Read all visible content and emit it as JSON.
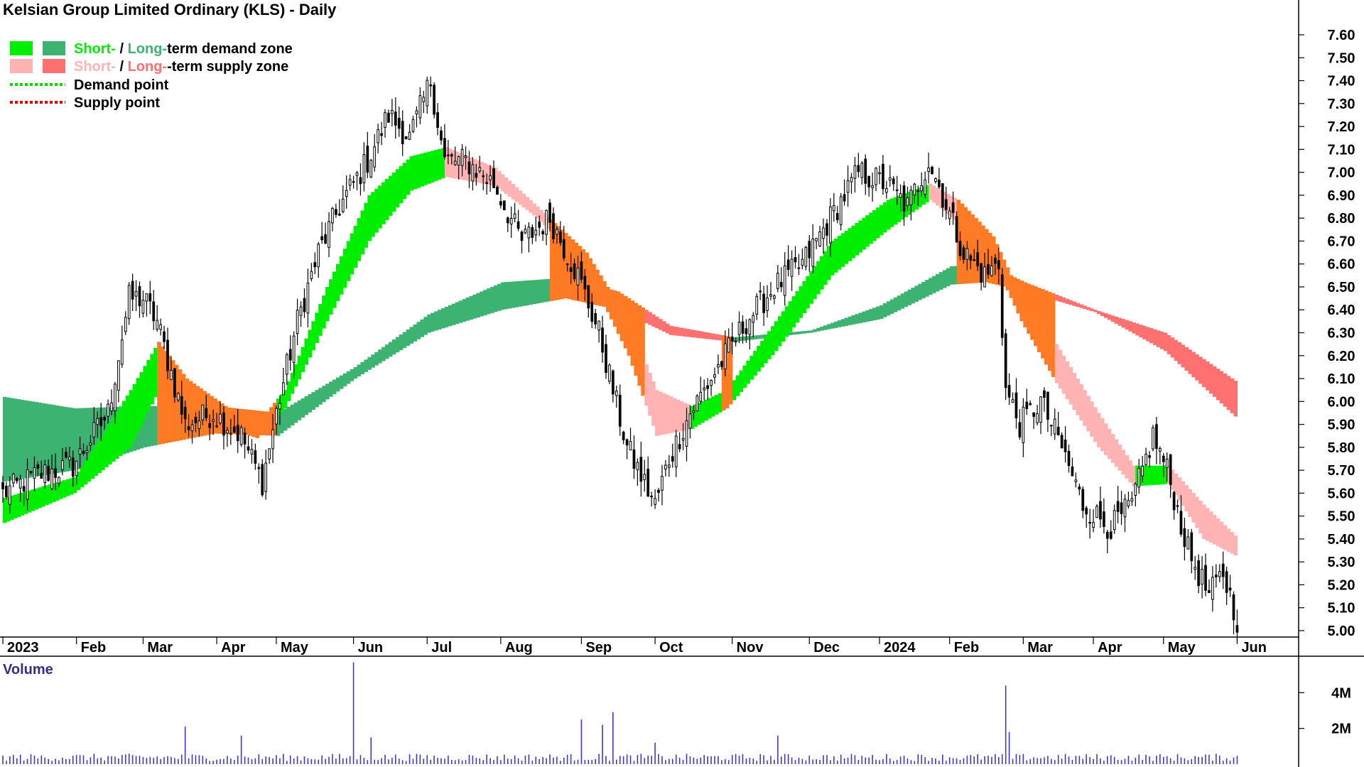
{
  "colors": {
    "short_demand": "#00ee00",
    "long_demand": "#3cb371",
    "short_supply": "#ffb3b3",
    "long_supply": "#ff7070",
    "overlap_zone": "#ff7a22",
    "demand_point": "#00dd00",
    "supply_point": "#e60000",
    "candle": "#000000",
    "volume_bar": "#3a3acc",
    "volume_label": "#3b2a86"
  },
  "chart_data": {
    "type": "candlestick",
    "title": "Kelsian Group Limited Ordinary (KLS) - Daily",
    "legend": [
      {
        "key": "zones_demand",
        "parts": [
          {
            "text": "Short-",
            "color": "short_demand"
          },
          {
            "text": " / ",
            "color": "text"
          },
          {
            "text": "Long-",
            "color": "long_demand"
          },
          {
            "text": "term demand zone",
            "color": "text"
          }
        ]
      },
      {
        "key": "zones_supply",
        "parts": [
          {
            "text": "Short-",
            "color": "short_supply"
          },
          {
            "text": " / ",
            "color": "text"
          },
          {
            "text": "Long-",
            "color": "long_supply"
          },
          {
            "text": "-term supply zone",
            "color": "text"
          }
        ]
      },
      {
        "key": "demand_point",
        "text": "Demand point"
      },
      {
        "key": "supply_point",
        "text": "Supply point"
      }
    ],
    "legend_placement": "top-left",
    "y_axis": {
      "position": "right",
      "ylim": [
        4.98,
        7.64
      ],
      "ticks": [
        5.0,
        5.1,
        5.2,
        5.3,
        5.4,
        5.5,
        5.6,
        5.7,
        5.8,
        5.9,
        6.0,
        6.1,
        6.2,
        6.3,
        6.4,
        6.5,
        6.6,
        6.7,
        6.8,
        6.9,
        7.0,
        7.1,
        7.2,
        7.3,
        7.4,
        7.5,
        7.6
      ],
      "tick_labels": [
        "5.00",
        "5.10",
        "5.20",
        "5.30",
        "5.40",
        "5.50",
        "5.60",
        "5.70",
        "5.80",
        "5.90",
        "6.00",
        "6.10",
        "6.20",
        "6.30",
        "6.40",
        "6.50",
        "6.60",
        "6.70",
        "6.80",
        "6.90",
        "7.00",
        "7.10",
        "7.20",
        "7.30",
        "7.40",
        "7.50",
        "7.60"
      ]
    },
    "x_axis": {
      "months": [
        {
          "label": "2023",
          "index": 0
        },
        {
          "label": "Feb",
          "index": 21
        },
        {
          "label": "Mar",
          "index": 40
        },
        {
          "label": "Apr",
          "index": 61
        },
        {
          "label": "May",
          "index": 78
        },
        {
          "label": "Jun",
          "index": 100
        },
        {
          "label": "Jul",
          "index": 121
        },
        {
          "label": "Aug",
          "index": 142
        },
        {
          "label": "Sep",
          "index": 165
        },
        {
          "label": "Oct",
          "index": 186
        },
        {
          "label": "Nov",
          "index": 208
        },
        {
          "label": "Dec",
          "index": 230
        },
        {
          "label": "2024",
          "index": 250
        },
        {
          "label": "Feb",
          "index": 270
        },
        {
          "label": "Mar",
          "index": 291
        },
        {
          "label": "Apr",
          "index": 311
        },
        {
          "label": "May",
          "index": 331
        },
        {
          "label": "Jun",
          "index": 352
        }
      ],
      "total_bars": 360
    },
    "price_keypoints": [
      {
        "i": 0,
        "c": 5.6
      },
      {
        "i": 10,
        "c": 5.68
      },
      {
        "i": 20,
        "c": 5.72
      },
      {
        "i": 30,
        "c": 5.95
      },
      {
        "i": 36,
        "c": 6.45
      },
      {
        "i": 40,
        "c": 6.45
      },
      {
        "i": 44,
        "c": 6.35
      },
      {
        "i": 52,
        "c": 5.9
      },
      {
        "i": 60,
        "c": 5.95
      },
      {
        "i": 68,
        "c": 5.85
      },
      {
        "i": 74,
        "c": 5.65
      },
      {
        "i": 78,
        "c": 5.95
      },
      {
        "i": 84,
        "c": 6.35
      },
      {
        "i": 90,
        "c": 6.65
      },
      {
        "i": 96,
        "c": 6.85
      },
      {
        "i": 104,
        "c": 7.05
      },
      {
        "i": 110,
        "c": 7.25
      },
      {
        "i": 116,
        "c": 7.15
      },
      {
        "i": 122,
        "c": 7.4
      },
      {
        "i": 126,
        "c": 7.05
      },
      {
        "i": 132,
        "c": 7.05
      },
      {
        "i": 140,
        "c": 6.95
      },
      {
        "i": 148,
        "c": 6.7
      },
      {
        "i": 156,
        "c": 6.8
      },
      {
        "i": 164,
        "c": 6.55
      },
      {
        "i": 170,
        "c": 6.3
      },
      {
        "i": 178,
        "c": 5.8
      },
      {
        "i": 186,
        "c": 5.55
      },
      {
        "i": 190,
        "c": 5.75
      },
      {
        "i": 196,
        "c": 5.95
      },
      {
        "i": 204,
        "c": 6.15
      },
      {
        "i": 212,
        "c": 6.35
      },
      {
        "i": 220,
        "c": 6.5
      },
      {
        "i": 228,
        "c": 6.6
      },
      {
        "i": 236,
        "c": 6.8
      },
      {
        "i": 244,
        "c": 7.0
      },
      {
        "i": 252,
        "c": 6.95
      },
      {
        "i": 258,
        "c": 6.85
      },
      {
        "i": 264,
        "c": 7.05
      },
      {
        "i": 268,
        "c": 6.9
      },
      {
        "i": 274,
        "c": 6.65
      },
      {
        "i": 280,
        "c": 6.55
      },
      {
        "i": 284,
        "c": 6.6
      },
      {
        "i": 286,
        "c": 6.05
      },
      {
        "i": 290,
        "c": 5.9
      },
      {
        "i": 296,
        "c": 6.0
      },
      {
        "i": 302,
        "c": 5.8
      },
      {
        "i": 308,
        "c": 5.55
      },
      {
        "i": 316,
        "c": 5.45
      },
      {
        "i": 322,
        "c": 5.55
      },
      {
        "i": 328,
        "c": 5.85
      },
      {
        "i": 332,
        "c": 5.7
      },
      {
        "i": 338,
        "c": 5.35
      },
      {
        "i": 344,
        "c": 5.15
      },
      {
        "i": 348,
        "c": 5.25
      },
      {
        "i": 352,
        "c": 5.05
      }
    ],
    "long_zone": [
      {
        "i": 0,
        "top": 6.02,
        "bot": 5.65
      },
      {
        "i": 20,
        "top": 5.97,
        "bot": 5.7
      },
      {
        "i": 40,
        "top": 5.98,
        "bot": 5.8
      },
      {
        "i": 60,
        "top": 5.98,
        "bot": 5.86
      },
      {
        "i": 78,
        "top": 5.95,
        "bot": 5.85
      },
      {
        "i": 100,
        "top": 6.15,
        "bot": 6.1
      },
      {
        "i": 121,
        "top": 6.38,
        "bot": 6.3
      },
      {
        "i": 142,
        "top": 6.52,
        "bot": 6.4
      },
      {
        "i": 160,
        "top": 6.54,
        "bot": 6.45
      },
      {
        "i": 175,
        "top": 6.48,
        "bot": 6.4
      },
      {
        "i": 190,
        "top": 6.33,
        "bot": 6.29
      },
      {
        "i": 208,
        "top": 6.28,
        "bot": 6.26
      },
      {
        "i": 230,
        "top": 6.31,
        "bot": 6.3
      },
      {
        "i": 250,
        "top": 6.42,
        "bot": 6.36
      },
      {
        "i": 270,
        "top": 6.59,
        "bot": 6.51
      },
      {
        "i": 280,
        "top": 6.6,
        "bot": 6.52
      },
      {
        "i": 291,
        "top": 6.52,
        "bot": 6.48
      },
      {
        "i": 311,
        "top": 6.4,
        "bot": 6.39
      },
      {
        "i": 331,
        "top": 6.3,
        "bot": 6.22
      },
      {
        "i": 352,
        "top": 6.08,
        "bot": 5.92
      }
    ],
    "short_zone": [
      {
        "i": 0,
        "top": 5.58,
        "bot": 5.47
      },
      {
        "i": 20,
        "top": 5.67,
        "bot": 5.6
      },
      {
        "i": 36,
        "top": 6.05,
        "bot": 5.8
      },
      {
        "i": 44,
        "top": 6.26,
        "bot": 6.05
      },
      {
        "i": 52,
        "top": 6.1,
        "bot": 5.95
      },
      {
        "i": 64,
        "top": 5.97,
        "bot": 5.88
      },
      {
        "i": 72,
        "top": 5.9,
        "bot": 5.84
      },
      {
        "i": 80,
        "top": 6.05,
        "bot": 5.97
      },
      {
        "i": 92,
        "top": 6.5,
        "bot": 6.35
      },
      {
        "i": 104,
        "top": 6.9,
        "bot": 6.7
      },
      {
        "i": 116,
        "top": 7.07,
        "bot": 6.92
      },
      {
        "i": 126,
        "top": 7.11,
        "bot": 6.98
      },
      {
        "i": 140,
        "top": 7.02,
        "bot": 6.94
      },
      {
        "i": 152,
        "top": 6.85,
        "bot": 6.8
      },
      {
        "i": 166,
        "top": 6.65,
        "bot": 6.58
      },
      {
        "i": 178,
        "top": 6.35,
        "bot": 6.2
      },
      {
        "i": 186,
        "top": 6.05,
        "bot": 5.85
      },
      {
        "i": 196,
        "top": 5.98,
        "bot": 5.88
      },
      {
        "i": 206,
        "top": 6.05,
        "bot": 5.97
      },
      {
        "i": 220,
        "top": 6.35,
        "bot": 6.22
      },
      {
        "i": 236,
        "top": 6.7,
        "bot": 6.55
      },
      {
        "i": 252,
        "top": 6.88,
        "bot": 6.75
      },
      {
        "i": 264,
        "top": 6.95,
        "bot": 6.88
      },
      {
        "i": 272,
        "top": 6.88,
        "bot": 6.78
      },
      {
        "i": 282,
        "top": 6.72,
        "bot": 6.62
      },
      {
        "i": 290,
        "top": 6.45,
        "bot": 6.35
      },
      {
        "i": 300,
        "top": 6.25,
        "bot": 6.08
      },
      {
        "i": 312,
        "top": 5.95,
        "bot": 5.8
      },
      {
        "i": 322,
        "top": 5.72,
        "bot": 5.63
      },
      {
        "i": 332,
        "top": 5.72,
        "bot": 5.64
      },
      {
        "i": 342,
        "top": 5.55,
        "bot": 5.4
      },
      {
        "i": 352,
        "top": 5.4,
        "bot": 5.32
      }
    ],
    "volume": {
      "label": "Volume",
      "ticks": [
        2000000,
        4000000
      ],
      "tick_labels": [
        "2M",
        "4M"
      ],
      "ylim": [
        0,
        5800000
      ],
      "spikes": [
        {
          "i": 52,
          "v": 2100000
        },
        {
          "i": 68,
          "v": 1600000
        },
        {
          "i": 100,
          "v": 5700000
        },
        {
          "i": 105,
          "v": 1500000
        },
        {
          "i": 165,
          "v": 2500000
        },
        {
          "i": 171,
          "v": 2200000
        },
        {
          "i": 174,
          "v": 2900000
        },
        {
          "i": 186,
          "v": 1200000
        },
        {
          "i": 221,
          "v": 1600000
        },
        {
          "i": 286,
          "v": 4400000
        },
        {
          "i": 287,
          "v": 1800000
        }
      ],
      "baseline": 450000
    }
  }
}
